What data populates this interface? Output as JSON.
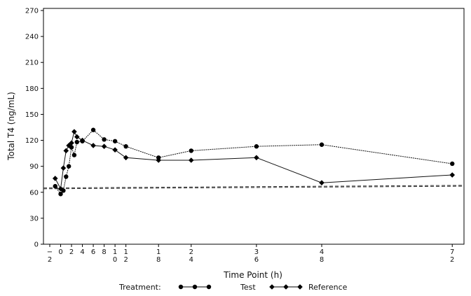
{
  "chart_data": {
    "type": "line",
    "xlabel": "Time Point (h)",
    "ylabel": "Total T4 (ng/mL)",
    "ylim": [
      0,
      270
    ],
    "yticks": [
      0,
      30,
      60,
      90,
      120,
      150,
      180,
      210,
      240,
      270
    ],
    "xlim": [
      -2,
      73
    ],
    "xticks": [
      {
        "value": -2,
        "lines": [
          "−",
          "2"
        ]
      },
      {
        "value": 0,
        "lines": [
          "0"
        ]
      },
      {
        "value": 2,
        "lines": [
          "2"
        ]
      },
      {
        "value": 4,
        "lines": [
          "4"
        ]
      },
      {
        "value": 6,
        "lines": [
          "6"
        ]
      },
      {
        "value": 8,
        "lines": [
          "8"
        ]
      },
      {
        "value": 10,
        "lines": [
          "1",
          "0"
        ]
      },
      {
        "value": 12,
        "lines": [
          "1",
          "2"
        ]
      },
      {
        "value": 18,
        "lines": [
          "1",
          "8"
        ]
      },
      {
        "value": 24,
        "lines": [
          "2",
          "4"
        ]
      },
      {
        "value": 36,
        "lines": [
          "3",
          "6"
        ]
      },
      {
        "value": 48,
        "lines": [
          "4",
          "8"
        ]
      },
      {
        "value": 72,
        "lines": [
          "7",
          "2"
        ]
      }
    ],
    "legend": {
      "title": "Treatment:",
      "placement": "bottom"
    },
    "series": [
      {
        "name": "Test",
        "marker": "circle",
        "x": [
          -1,
          0,
          0.5,
          1,
          1.5,
          2,
          2.5,
          3,
          4,
          6,
          8,
          10,
          12,
          18,
          24,
          36,
          48,
          72
        ],
        "y": [
          67,
          58,
          62,
          78,
          90,
          112,
          103,
          118,
          119,
          132,
          121,
          119,
          113,
          100,
          108,
          113,
          115,
          93
        ]
      },
      {
        "name": "Reference",
        "marker": "diamond",
        "x": [
          -1,
          0,
          0.5,
          1,
          1.5,
          2,
          2.5,
          3,
          4,
          6,
          8,
          10,
          12,
          18,
          24,
          36,
          48,
          72
        ],
        "y": [
          76,
          64,
          88,
          108,
          114,
          117,
          130,
          124,
          120,
          114,
          113,
          109,
          100,
          97,
          97,
          100,
          71,
          80
        ]
      }
    ],
    "reference_lines": [
      {
        "y0": 64,
        "y1": 67
      },
      {
        "y0": 65,
        "y1": 68
      }
    ]
  }
}
